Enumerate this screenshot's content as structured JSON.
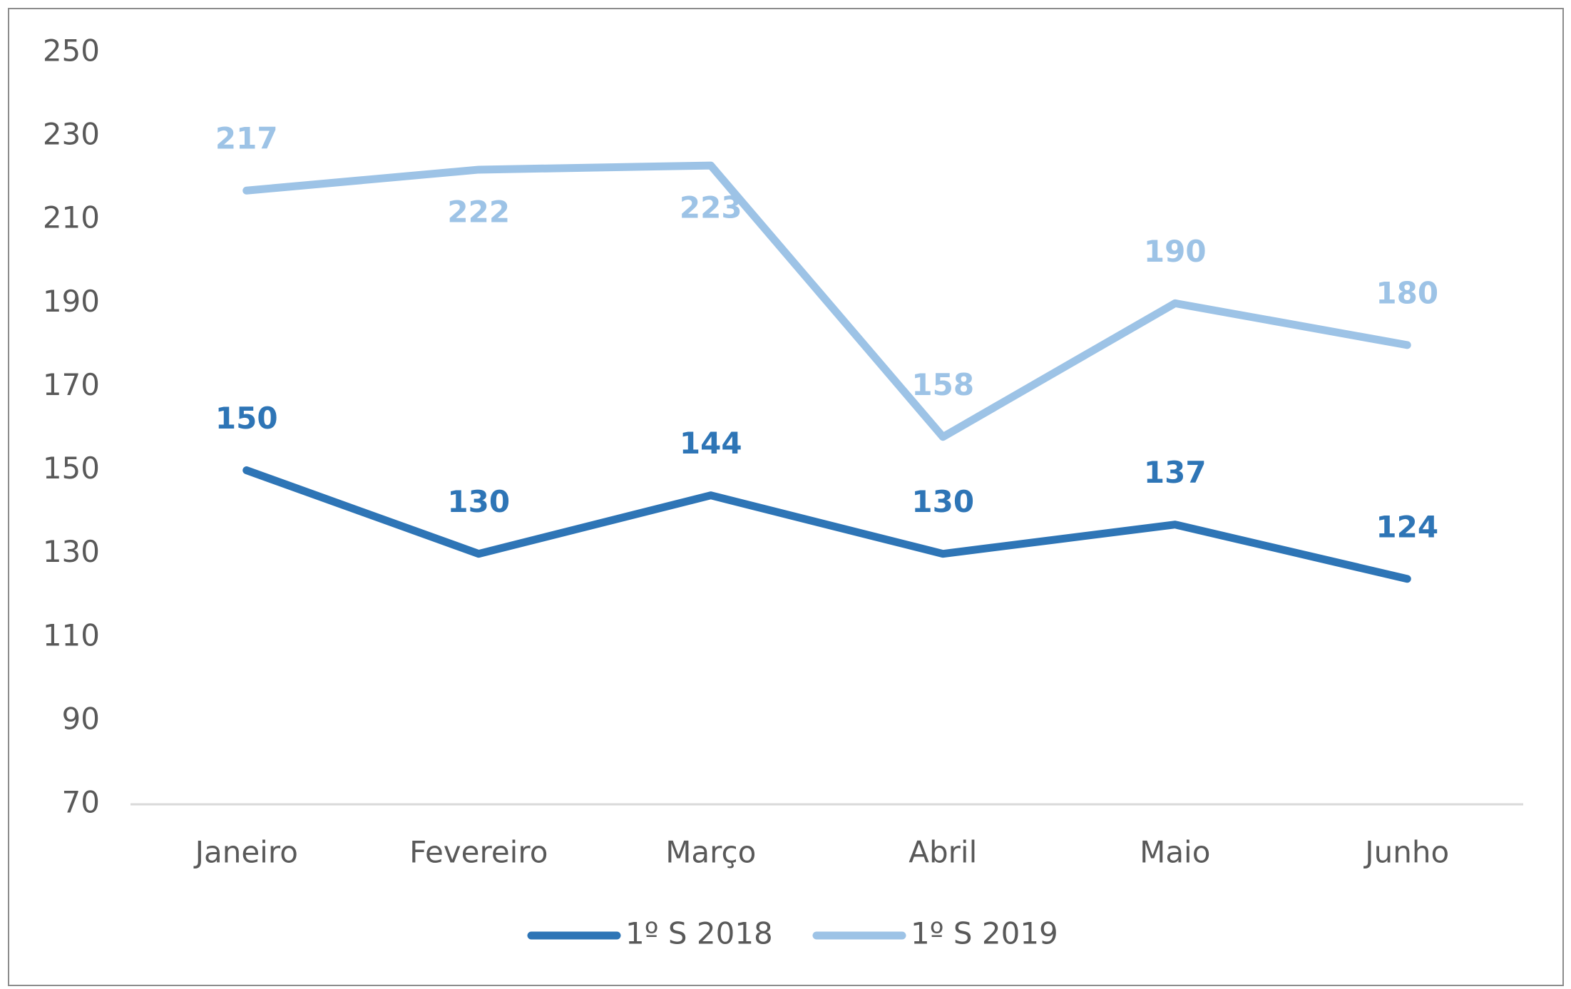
{
  "chart_data": {
    "type": "line",
    "categories": [
      "Janeiro",
      "Fevereiro",
      "Março",
      "Abril",
      "Maio",
      "Junho"
    ],
    "series": [
      {
        "name": "1º S 2018",
        "color": "#2e75b6",
        "values": [
          150,
          130,
          144,
          130,
          137,
          124
        ]
      },
      {
        "name": "1º S 2019",
        "color": "#9dc3e6",
        "values": [
          217,
          222,
          223,
          158,
          190,
          180
        ]
      }
    ],
    "ylim": [
      70,
      250
    ],
    "yticks": [
      70,
      90,
      110,
      130,
      150,
      170,
      190,
      210,
      230,
      250
    ],
    "grid": false,
    "legend": "bottom"
  }
}
